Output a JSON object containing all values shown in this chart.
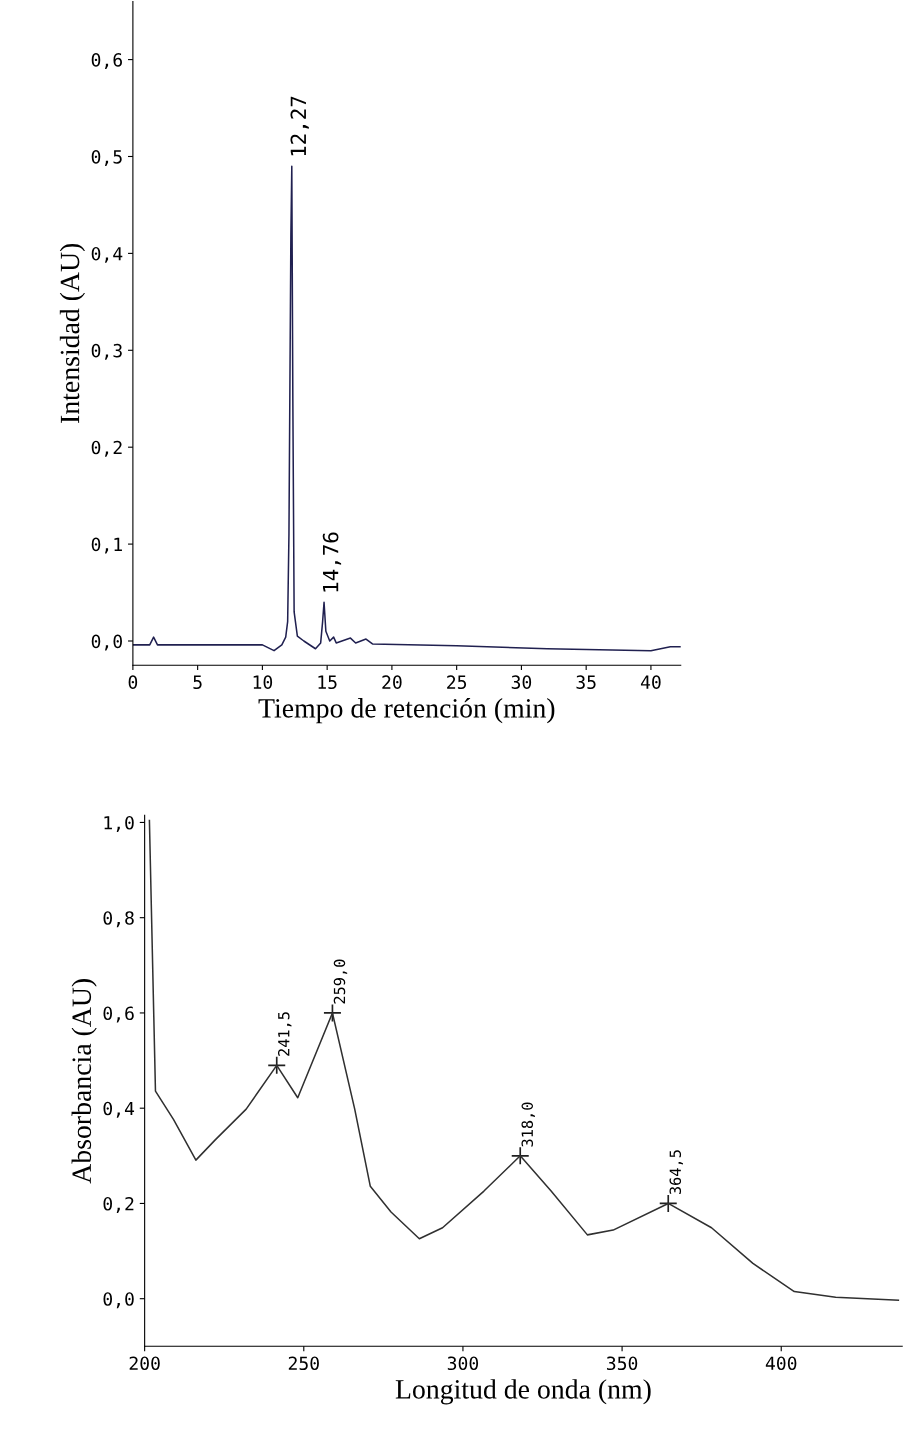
{
  "chart_data": [
    {
      "type": "line",
      "xlabel": "Tiempo de retención (min)",
      "ylabel": "Intensidad (AU)",
      "x": [
        0,
        1.3,
        1.6,
        1.9,
        5,
        10,
        10.9,
        11.5,
        11.8,
        11.95,
        12.05,
        12.2,
        12.27,
        12.35,
        12.45,
        12.7,
        13.2,
        14.1,
        14.5,
        14.65,
        14.76,
        14.9,
        15.2,
        15.5,
        15.7,
        16.8,
        17.2,
        18,
        18.5,
        25,
        32,
        40,
        41.5,
        42.3
      ],
      "series": [
        {
          "color": "#202050",
          "values": [
            -0.004,
            -0.004,
            0.004,
            -0.004,
            -0.004,
            -0.004,
            -0.01,
            -0.004,
            0.004,
            0.02,
            0.11,
            0.42,
            0.49,
            0.25,
            0.03,
            0.005,
            0.0,
            -0.008,
            -0.002,
            0.02,
            0.04,
            0.01,
            0.0,
            0.004,
            -0.002,
            0.003,
            -0.002,
            0.002,
            -0.003,
            -0.005,
            -0.008,
            -0.01,
            -0.006,
            -0.006
          ]
        }
      ],
      "xlim": [
        0,
        42.3
      ],
      "xticks": [
        0,
        5,
        10,
        15,
        20,
        25,
        30,
        35,
        40
      ],
      "ylim": [
        -0.025,
        0.66
      ],
      "yticks": [
        {
          "value": 0,
          "label": "0,0"
        },
        {
          "value": 0.1,
          "label": "0,1"
        },
        {
          "value": 0.2,
          "label": "0,2"
        },
        {
          "value": 0.3,
          "label": "0,3"
        },
        {
          "value": 0.4,
          "label": "0,4"
        },
        {
          "value": 0.5,
          "label": "0,5"
        },
        {
          "value": 0.6,
          "label": "0,6"
        }
      ],
      "grid": false,
      "marker": "none",
      "annotations": [
        {
          "text": "12,27",
          "x": 12.27,
          "y": 0.49
        },
        {
          "text": "14,76",
          "x": 14.76,
          "y": 0.04
        }
      ]
    },
    {
      "type": "line",
      "xlabel": "Longitud de onda (nm)",
      "ylabel": "Absorbancia (AU)",
      "x": [
        201.5,
        203.4,
        209.1,
        216.1,
        222.1,
        231.9,
        241.5,
        248.1,
        259,
        266,
        270.9,
        277.4,
        286.3,
        293.6,
        306.6,
        318,
        327.7,
        339.1,
        347.2,
        364.5,
        378.1,
        391.1,
        404.1,
        417.1,
        436.8
      ],
      "series": [
        {
          "color": "#303030",
          "values": [
            1.004,
            0.436,
            0.376,
            0.291,
            0.333,
            0.398,
            0.49,
            0.422,
            0.6,
            0.398,
            0.236,
            0.182,
            0.126,
            0.149,
            0.226,
            0.3,
            0.226,
            0.134,
            0.144,
            0.2,
            0.149,
            0.074,
            0.015,
            0.003,
            -0.003
          ]
        },
        {
          "type": "scatter",
          "marker": "cross",
          "color": "#202020",
          "x": [
            241.5,
            259,
            318,
            364.5
          ],
          "values": [
            0.49,
            0.6,
            0.3,
            0.2
          ]
        }
      ],
      "xlim": [
        200,
        438
      ],
      "xticks": [
        200,
        250,
        300,
        350,
        400
      ],
      "ylim": [
        -0.1,
        1.015
      ],
      "yticks": [
        {
          "value": 0,
          "label": "0,0"
        },
        {
          "value": 0.2,
          "label": "0,2"
        },
        {
          "value": 0.4,
          "label": "0,4"
        },
        {
          "value": 0.6,
          "label": "0,6"
        },
        {
          "value": 0.8,
          "label": "0,8"
        },
        {
          "value": 1.0,
          "label": "1,0"
        }
      ],
      "grid": false,
      "annotations": [
        {
          "text": "241,5",
          "x": 241.5,
          "y": 0.49
        },
        {
          "text": "259,0",
          "x": 259,
          "y": 0.6
        },
        {
          "text": "318,0",
          "x": 318,
          "y": 0.3
        },
        {
          "text": "364,5",
          "x": 364.5,
          "y": 0.2
        }
      ]
    }
  ]
}
